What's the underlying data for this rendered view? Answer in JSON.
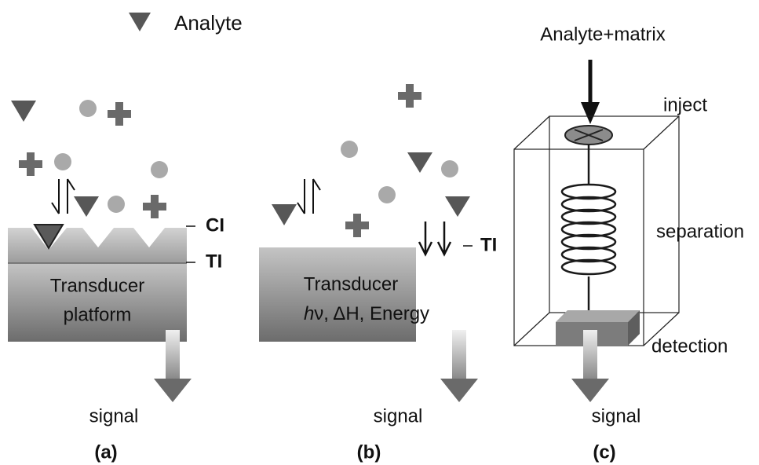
{
  "legend": {
    "label": "Analyte"
  },
  "panel_a": {
    "layer_labels": [
      "CI",
      "TI"
    ],
    "transducer": [
      "Transducer",
      "platform"
    ],
    "output": "signal",
    "caption": "(a)"
  },
  "panel_b": {
    "layer_label": "TI",
    "transducer": "Transducer",
    "transducer_modes": {
      "italic": "h",
      "rest": "ν, ΔH, Energy"
    },
    "output": "signal",
    "caption": "(b)"
  },
  "panel_c": {
    "input": "Analyte+matrix",
    "stages": [
      "inject",
      "separation",
      "detection"
    ],
    "output": "signal",
    "caption": "(c)"
  }
}
